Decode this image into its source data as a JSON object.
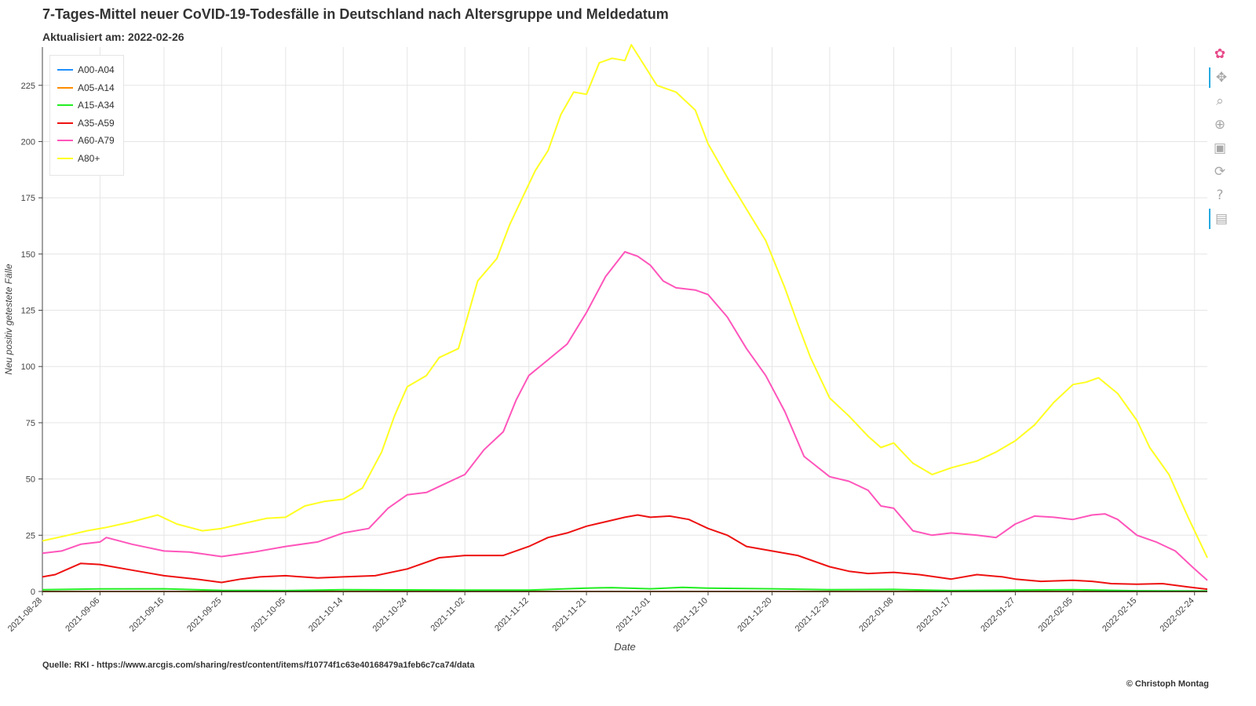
{
  "title": "7-Tages-Mittel neuer CoVID-19-Todesfälle in Deutschland nach Altersgruppe und Meldedatum",
  "subtitle": "Aktualisiert am: 2022-02-26",
  "source": "Quelle: RKI - https://www.arcgis.com/sharing/rest/content/items/f10774f1c63e40168479a1feb6c7ca74/data",
  "copyright": "© Christoph Montag",
  "toolbar": {
    "items": [
      {
        "name": "bokeh-logo-icon",
        "glyph": "✿",
        "active": false
      },
      {
        "name": "pan-tool-icon",
        "glyph": "✥",
        "active": true
      },
      {
        "name": "box-zoom-tool-icon",
        "glyph": "⌕",
        "active": false
      },
      {
        "name": "wheel-zoom-tool-icon",
        "glyph": "⊕",
        "active": false
      },
      {
        "name": "save-tool-icon",
        "glyph": "▣",
        "active": false
      },
      {
        "name": "reset-tool-icon",
        "glyph": "⟳",
        "active": false
      },
      {
        "name": "help-tool-icon",
        "glyph": "?",
        "active": false
      },
      {
        "name": "hover-tool-icon",
        "glyph": "▤",
        "active": true
      }
    ]
  },
  "chart_data": {
    "type": "line",
    "xlabel": "Date",
    "ylabel": "Neu positiv getestete Fälle",
    "x_range": [
      "2021-08-28",
      "2022-02-26"
    ],
    "ylim": [
      0,
      242
    ],
    "y_ticks": [
      0,
      25,
      50,
      75,
      100,
      125,
      150,
      175,
      200,
      225
    ],
    "x_ticks": [
      "2021-08-28",
      "2021-09-06",
      "2021-09-16",
      "2021-09-25",
      "2021-10-05",
      "2021-10-14",
      "2021-10-24",
      "2021-11-02",
      "2021-11-12",
      "2021-11-21",
      "2021-12-01",
      "2021-12-10",
      "2021-12-20",
      "2021-12-29",
      "2022-01-08",
      "2022-01-17",
      "2022-01-27",
      "2022-02-05",
      "2022-02-15",
      "2022-02-24"
    ],
    "grid": true,
    "legend_position": "top-left",
    "series": [
      {
        "name": "A00-A04",
        "color": "#1f8fff",
        "points": [
          [
            "2021-08-28",
            0
          ],
          [
            "2022-02-26",
            0
          ]
        ]
      },
      {
        "name": "A05-A14",
        "color": "#ff8c00",
        "points": [
          [
            "2021-08-28",
            0
          ],
          [
            "2022-02-26",
            0
          ]
        ]
      },
      {
        "name": "A15-A34",
        "color": "#22ee22",
        "points": [
          [
            "2021-08-28",
            0.8
          ],
          [
            "2021-09-06",
            1.1
          ],
          [
            "2021-09-16",
            1.2
          ],
          [
            "2021-09-25",
            0.5
          ],
          [
            "2021-10-05",
            0.4
          ],
          [
            "2021-10-14",
            0.8
          ],
          [
            "2021-10-24",
            0.7
          ],
          [
            "2021-11-02",
            0.6
          ],
          [
            "2021-11-12",
            0.6
          ],
          [
            "2021-11-21",
            1.5
          ],
          [
            "2021-11-25",
            1.7
          ],
          [
            "2021-12-01",
            1.2
          ],
          [
            "2021-12-06",
            1.8
          ],
          [
            "2021-12-10",
            1.5
          ],
          [
            "2021-12-20",
            1.2
          ],
          [
            "2021-12-29",
            0.8
          ],
          [
            "2022-01-08",
            0.9
          ],
          [
            "2022-01-17",
            0.4
          ],
          [
            "2022-01-27",
            0.6
          ],
          [
            "2022-02-05",
            0.8
          ],
          [
            "2022-02-15",
            0.3
          ],
          [
            "2022-02-26",
            0.2
          ]
        ]
      },
      {
        "name": "A35-A59",
        "color": "#ee1111",
        "points": [
          [
            "2021-08-28",
            6.5
          ],
          [
            "2021-08-30",
            7.5
          ],
          [
            "2021-09-01",
            10
          ],
          [
            "2021-09-03",
            12.5
          ],
          [
            "2021-09-06",
            12
          ],
          [
            "2021-09-08",
            11
          ],
          [
            "2021-09-11",
            9.5
          ],
          [
            "2021-09-16",
            7
          ],
          [
            "2021-09-21",
            5.5
          ],
          [
            "2021-09-25",
            4
          ],
          [
            "2021-09-28",
            5.5
          ],
          [
            "2021-10-01",
            6.5
          ],
          [
            "2021-10-05",
            7
          ],
          [
            "2021-10-10",
            6
          ],
          [
            "2021-10-14",
            6.5
          ],
          [
            "2021-10-19",
            7
          ],
          [
            "2021-10-24",
            10
          ],
          [
            "2021-10-29",
            15
          ],
          [
            "2021-11-02",
            16
          ],
          [
            "2021-11-05",
            16
          ],
          [
            "2021-11-08",
            16
          ],
          [
            "2021-11-12",
            20
          ],
          [
            "2021-11-15",
            24
          ],
          [
            "2021-11-18",
            26
          ],
          [
            "2021-11-21",
            29
          ],
          [
            "2021-11-24",
            31
          ],
          [
            "2021-11-27",
            33
          ],
          [
            "2021-11-29",
            34
          ],
          [
            "2021-12-01",
            33
          ],
          [
            "2021-12-04",
            33.5
          ],
          [
            "2021-12-07",
            32
          ],
          [
            "2021-12-10",
            28
          ],
          [
            "2021-12-13",
            25
          ],
          [
            "2021-12-16",
            20
          ],
          [
            "2021-12-20",
            18
          ],
          [
            "2021-12-24",
            16
          ],
          [
            "2021-12-29",
            11
          ],
          [
            "2022-01-01",
            9
          ],
          [
            "2022-01-04",
            8
          ],
          [
            "2022-01-08",
            8.5
          ],
          [
            "2022-01-12",
            7.5
          ],
          [
            "2022-01-17",
            5.5
          ],
          [
            "2022-01-21",
            7.5
          ],
          [
            "2022-01-25",
            6.5
          ],
          [
            "2022-01-27",
            5.5
          ],
          [
            "2022-01-31",
            4.5
          ],
          [
            "2022-02-05",
            5
          ],
          [
            "2022-02-08",
            4.5
          ],
          [
            "2022-02-11",
            3.5
          ],
          [
            "2022-02-15",
            3.2
          ],
          [
            "2022-02-19",
            3.5
          ],
          [
            "2022-02-23",
            2
          ],
          [
            "2022-02-26",
            1
          ]
        ]
      },
      {
        "name": "A60-A79",
        "color": "#ff55bb",
        "points": [
          [
            "2021-08-28",
            17
          ],
          [
            "2021-08-31",
            18
          ],
          [
            "2021-09-03",
            21
          ],
          [
            "2021-09-06",
            22
          ],
          [
            "2021-09-07",
            24
          ],
          [
            "2021-09-11",
            21
          ],
          [
            "2021-09-16",
            18
          ],
          [
            "2021-09-20",
            17.5
          ],
          [
            "2021-09-25",
            15.5
          ],
          [
            "2021-09-30",
            17.5
          ],
          [
            "2021-10-05",
            20
          ],
          [
            "2021-10-10",
            22
          ],
          [
            "2021-10-14",
            26
          ],
          [
            "2021-10-18",
            28
          ],
          [
            "2021-10-21",
            37
          ],
          [
            "2021-10-24",
            43
          ],
          [
            "2021-10-27",
            44
          ],
          [
            "2021-10-30",
            48
          ],
          [
            "2021-11-02",
            52
          ],
          [
            "2021-11-05",
            63
          ],
          [
            "2021-11-08",
            71
          ],
          [
            "2021-11-10",
            85
          ],
          [
            "2021-11-12",
            96
          ],
          [
            "2021-11-15",
            103
          ],
          [
            "2021-11-18",
            110
          ],
          [
            "2021-11-21",
            124
          ],
          [
            "2021-11-24",
            140
          ],
          [
            "2021-11-27",
            151
          ],
          [
            "2021-11-29",
            149
          ],
          [
            "2021-12-01",
            145
          ],
          [
            "2021-12-03",
            138
          ],
          [
            "2021-12-05",
            135
          ],
          [
            "2021-12-08",
            134
          ],
          [
            "2021-12-10",
            132
          ],
          [
            "2021-12-13",
            122
          ],
          [
            "2021-12-16",
            108
          ],
          [
            "2021-12-19",
            96
          ],
          [
            "2021-12-22",
            80
          ],
          [
            "2021-12-25",
            60
          ],
          [
            "2021-12-29",
            51
          ],
          [
            "2022-01-01",
            49
          ],
          [
            "2022-01-04",
            45
          ],
          [
            "2022-01-06",
            38
          ],
          [
            "2022-01-08",
            37
          ],
          [
            "2022-01-11",
            27
          ],
          [
            "2022-01-14",
            25
          ],
          [
            "2022-01-17",
            26
          ],
          [
            "2022-01-21",
            25
          ],
          [
            "2022-01-24",
            24
          ],
          [
            "2022-01-27",
            30
          ],
          [
            "2022-01-30",
            33.5
          ],
          [
            "2022-02-02",
            33
          ],
          [
            "2022-02-05",
            32
          ],
          [
            "2022-02-08",
            34
          ],
          [
            "2022-02-10",
            34.5
          ],
          [
            "2022-02-12",
            32
          ],
          [
            "2022-02-15",
            25
          ],
          [
            "2022-02-18",
            22
          ],
          [
            "2022-02-21",
            18
          ],
          [
            "2022-02-24",
            10
          ],
          [
            "2022-02-26",
            5
          ]
        ]
      },
      {
        "name": "A80+",
        "color": "#ffff22",
        "points": [
          [
            "2021-08-28",
            22.5
          ],
          [
            "2021-09-01",
            25
          ],
          [
            "2021-09-04",
            27
          ],
          [
            "2021-09-07",
            28.5
          ],
          [
            "2021-09-11",
            31
          ],
          [
            "2021-09-15",
            34
          ],
          [
            "2021-09-18",
            30
          ],
          [
            "2021-09-22",
            27
          ],
          [
            "2021-09-25",
            28
          ],
          [
            "2021-09-28",
            30
          ],
          [
            "2021-10-02",
            32.5
          ],
          [
            "2021-10-05",
            33
          ],
          [
            "2021-10-08",
            38
          ],
          [
            "2021-10-11",
            40
          ],
          [
            "2021-10-14",
            41
          ],
          [
            "2021-10-17",
            46
          ],
          [
            "2021-10-20",
            62
          ],
          [
            "2021-10-22",
            78
          ],
          [
            "2021-10-24",
            91
          ],
          [
            "2021-10-27",
            96
          ],
          [
            "2021-10-29",
            104
          ],
          [
            "2021-11-01",
            108
          ],
          [
            "2021-11-02",
            118
          ],
          [
            "2021-11-04",
            138
          ],
          [
            "2021-11-07",
            148
          ],
          [
            "2021-11-09",
            163
          ],
          [
            "2021-11-11",
            175
          ],
          [
            "2021-11-13",
            187
          ],
          [
            "2021-11-15",
            196
          ],
          [
            "2021-11-17",
            212
          ],
          [
            "2021-11-19",
            222
          ],
          [
            "2021-11-21",
            221
          ],
          [
            "2021-11-23",
            235
          ],
          [
            "2021-11-25",
            237
          ],
          [
            "2021-11-27",
            236
          ],
          [
            "2021-11-28",
            243
          ],
          [
            "2021-11-30",
            234
          ],
          [
            "2021-12-02",
            225
          ],
          [
            "2021-12-05",
            222
          ],
          [
            "2021-12-08",
            214
          ],
          [
            "2021-12-10",
            199
          ],
          [
            "2021-12-13",
            184
          ],
          [
            "2021-12-16",
            170
          ],
          [
            "2021-12-19",
            156
          ],
          [
            "2021-12-22",
            135
          ],
          [
            "2021-12-24",
            119
          ],
          [
            "2021-12-26",
            104
          ],
          [
            "2021-12-29",
            86
          ],
          [
            "2022-01-01",
            78
          ],
          [
            "2022-01-04",
            69
          ],
          [
            "2022-01-06",
            64
          ],
          [
            "2022-01-08",
            66
          ],
          [
            "2022-01-11",
            57
          ],
          [
            "2022-01-14",
            52
          ],
          [
            "2022-01-17",
            55
          ],
          [
            "2022-01-21",
            58
          ],
          [
            "2022-01-24",
            62
          ],
          [
            "2022-01-27",
            67
          ],
          [
            "2022-01-30",
            74
          ],
          [
            "2022-02-02",
            84
          ],
          [
            "2022-02-05",
            92
          ],
          [
            "2022-02-07",
            93
          ],
          [
            "2022-02-09",
            95
          ],
          [
            "2022-02-12",
            88
          ],
          [
            "2022-02-15",
            76
          ],
          [
            "2022-02-17",
            64
          ],
          [
            "2022-02-20",
            52
          ],
          [
            "2022-02-23",
            33
          ],
          [
            "2022-02-26",
            15
          ]
        ]
      }
    ]
  }
}
